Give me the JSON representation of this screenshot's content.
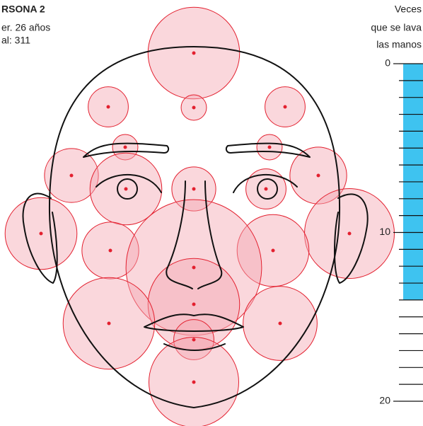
{
  "chart_data": [
    {
      "type": "bubble",
      "title": "RSONA 2",
      "subtitle": [
        "er. 26 años",
        "al: 311"
      ],
      "values": [
        26,
        5,
        2,
        5,
        2,
        2,
        9,
        10,
        16,
        5,
        6,
        16,
        25,
        10,
        16,
        57,
        26,
        26,
        17,
        5,
        25
      ],
      "color": "#f4a7b1",
      "stroke": "#e3202f",
      "dot_color": "#e3202f"
    },
    {
      "type": "bar",
      "title": [
        "Veces",
        "que se lava",
        "las manos"
      ],
      "values": [
        14
      ],
      "color": "#3ec3f0",
      "ylim": [
        0,
        20
      ],
      "yticks": [
        0,
        10,
        20
      ],
      "minor_ticks": [
        0,
        1,
        2,
        3,
        4,
        5,
        6,
        7,
        8,
        9,
        10,
        11,
        12,
        13,
        14,
        15,
        16,
        17,
        18,
        19,
        20
      ]
    }
  ]
}
